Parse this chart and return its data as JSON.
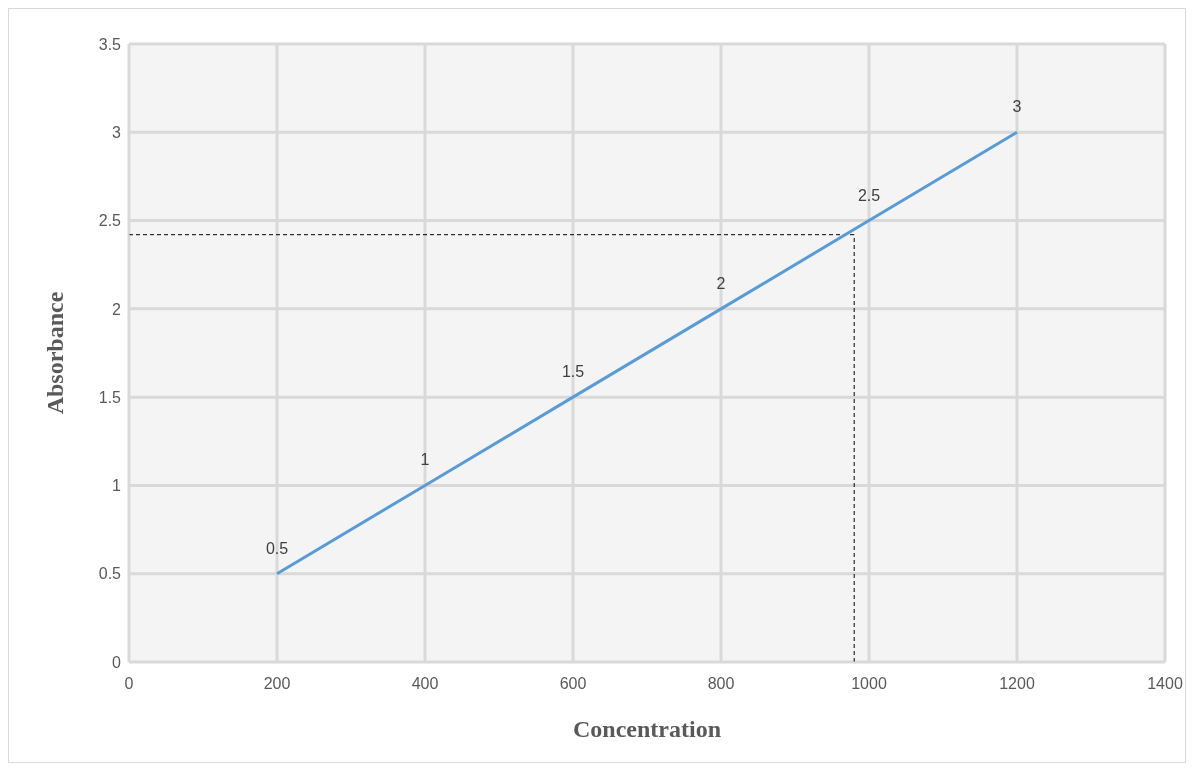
{
  "chart_data": {
    "type": "line",
    "xlabel": "Concentration",
    "ylabel": "Absorbance",
    "x": [
      200,
      400,
      600,
      800,
      1000,
      1200
    ],
    "series": [
      {
        "color": "#5b9bd5",
        "values": [
          0.5,
          1,
          1.5,
          2,
          2.5,
          3
        ]
      }
    ],
    "xlim": [
      0,
      1400
    ],
    "xticks": [
      0,
      200,
      400,
      600,
      800,
      1000,
      1200,
      1400
    ],
    "ylim": [
      0,
      3.5
    ],
    "yticks": [
      0,
      0.5,
      1,
      1.5,
      2,
      2.5,
      3,
      3.5
    ],
    "grid": true,
    "data_labels": true,
    "marker": "none",
    "line_style": "solid",
    "ref_lines": [
      {
        "axis": "y",
        "value": 2.42,
        "color": "#000000",
        "line_style": "dashed"
      },
      {
        "axis": "x",
        "value": 980,
        "color": "#000000",
        "line_style": "dashed"
      }
    ]
  }
}
